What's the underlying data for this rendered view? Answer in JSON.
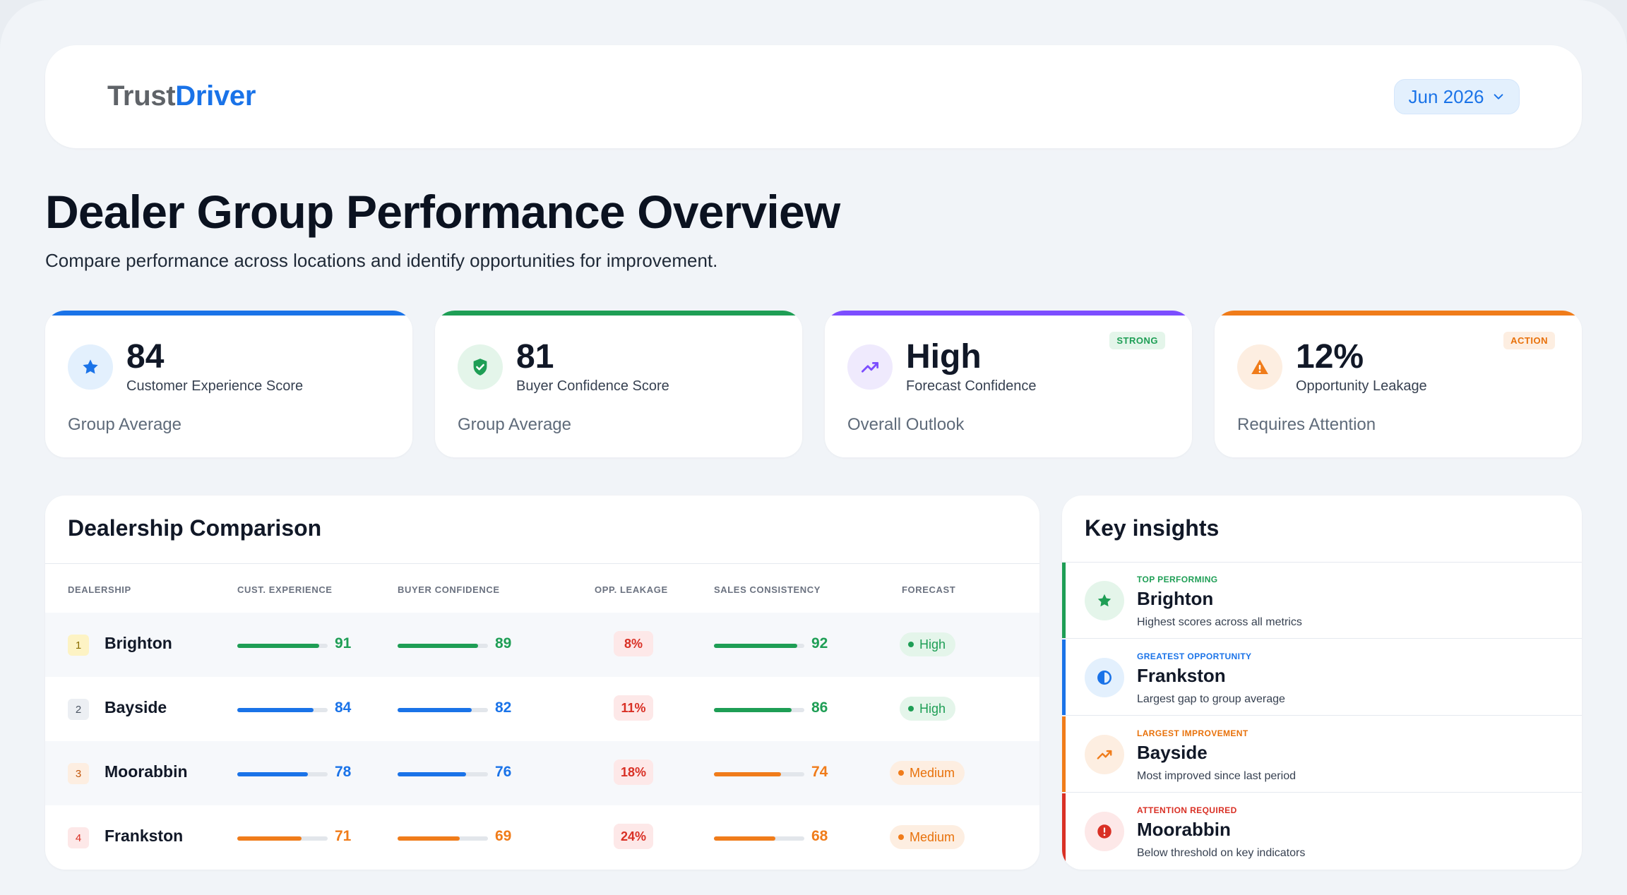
{
  "header": {
    "logo_part1": "Trust",
    "logo_part2": "Driver",
    "date_selector": "Jun 2026"
  },
  "page": {
    "title": "Dealer Group Performance Overview",
    "subtitle": "Compare performance across locations and identify opportunities for improvement."
  },
  "kpis": [
    {
      "value": "84",
      "label": "Customer Experience Score",
      "footer": "Group Average",
      "tag": "",
      "icon": "star-icon",
      "accent": "#1a73e8"
    },
    {
      "value": "81",
      "label": "Buyer Confidence Score",
      "footer": "Group Average",
      "tag": "",
      "icon": "shield-check-icon",
      "accent": "#1e9e55"
    },
    {
      "value": "High",
      "label": "Forecast Confidence",
      "footer": "Overall Outlook",
      "tag": "STRONG",
      "icon": "trend-up-icon",
      "accent": "#7c4dff"
    },
    {
      "value": "12%",
      "label": "Opportunity Leakage",
      "footer": "Requires Attention",
      "tag": "ACTION",
      "icon": "warning-icon",
      "accent": "#f07c1a"
    }
  ],
  "comparison": {
    "title": "Dealership Comparison",
    "columns": [
      "DEALERSHIP",
      "CUST. EXPERIENCE",
      "BUYER CONFIDENCE",
      "OPP. LEAKAGE",
      "SALES CONSISTENCY",
      "FORECAST"
    ],
    "rows": [
      {
        "rank": "1",
        "name": "Brighton",
        "cx": "91",
        "bc": "89",
        "leak": "8%",
        "sc": "92",
        "forecast": "High"
      },
      {
        "rank": "2",
        "name": "Bayside",
        "cx": "84",
        "bc": "82",
        "leak": "11%",
        "sc": "86",
        "forecast": "High"
      },
      {
        "rank": "3",
        "name": "Moorabbin",
        "cx": "78",
        "bc": "76",
        "leak": "18%",
        "sc": "74",
        "forecast": "Medium"
      },
      {
        "rank": "4",
        "name": "Frankston",
        "cx": "71",
        "bc": "69",
        "leak": "24%",
        "sc": "68",
        "forecast": "Medium"
      }
    ]
  },
  "insights": {
    "title": "Key insights",
    "items": [
      {
        "category": "TOP PERFORMING",
        "name": "Brighton",
        "desc": "Highest scores across all metrics",
        "icon": "star-icon",
        "color": "#1e9e55"
      },
      {
        "category": "GREATEST OPPORTUNITY",
        "name": "Frankston",
        "desc": "Largest gap to group average",
        "icon": "half-circle-icon",
        "color": "#1a73e8"
      },
      {
        "category": "LARGEST IMPROVEMENT",
        "name": "Bayside",
        "desc": "Most improved since last period",
        "icon": "trend-up-icon",
        "color": "#f07c1a"
      },
      {
        "category": "ATTENTION REQUIRED",
        "name": "Moorabbin",
        "desc": "Below threshold on key indicators",
        "icon": "alert-icon",
        "color": "#d93025"
      }
    ]
  }
}
